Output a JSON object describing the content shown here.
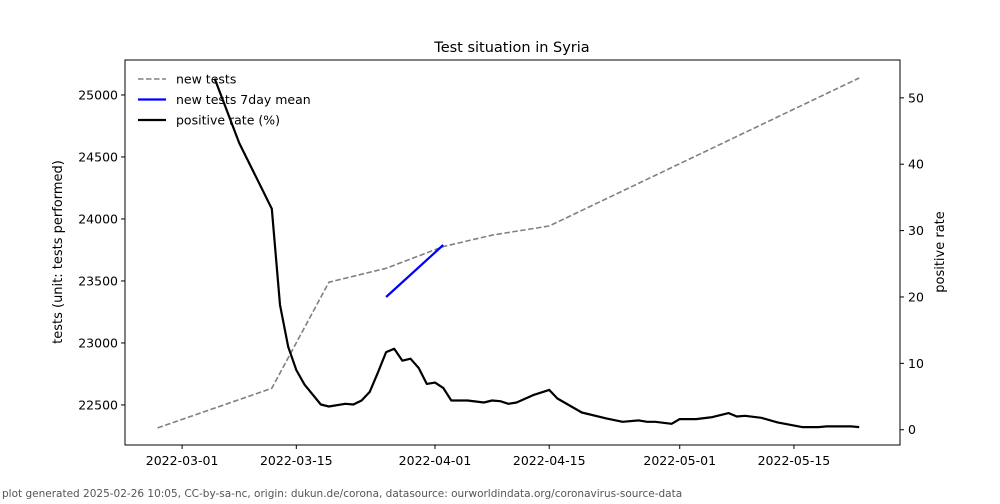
{
  "chart_data": {
    "type": "line",
    "title": "Test situation in Syria",
    "xlabel": "",
    "ylabel": "tests (unit: tests performed)",
    "y2label": "positive rate",
    "xlim": [
      "2022-02-22",
      "2022-05-28"
    ],
    "ylim": [
      22177,
      25282
    ],
    "y2lim": [
      -2.3,
      55.7
    ],
    "x_ticks": [
      "2022-03-01",
      "2022-03-15",
      "2022-04-01",
      "2022-04-15",
      "2022-05-01",
      "2022-05-15"
    ],
    "y_ticks": [
      22500,
      23000,
      23500,
      24000,
      24500,
      25000
    ],
    "y2_ticks": [
      0,
      10,
      20,
      30,
      40,
      50
    ],
    "legend_position": "top-left",
    "series": [
      {
        "name": "new tests",
        "axis": "left",
        "color": "#808080",
        "style": "dashed",
        "points": [
          [
            "2022-02-26",
            22315
          ],
          [
            "2022-03-12",
            22634
          ],
          [
            "2022-03-19",
            23490
          ],
          [
            "2022-03-26",
            23602
          ],
          [
            "2022-04-02",
            23777
          ],
          [
            "2022-04-08",
            23870
          ],
          [
            "2022-04-15",
            23943
          ],
          [
            "2022-05-23",
            25137
          ]
        ]
      },
      {
        "name": "new tests 7day mean",
        "axis": "left",
        "color": "#0000ff",
        "style": "solid",
        "points": [
          [
            "2022-03-26",
            23371
          ],
          [
            "2022-04-02",
            23790
          ]
        ]
      },
      {
        "name": "positive rate (%)",
        "axis": "right",
        "color": "#000000",
        "style": "solid",
        "points": [
          [
            "2022-03-05",
            52.9
          ],
          [
            "2022-03-08",
            43.2
          ],
          [
            "2022-03-12",
            33.3
          ],
          [
            "2022-03-13",
            18.8
          ],
          [
            "2022-03-14",
            12.5
          ],
          [
            "2022-03-15",
            9.0
          ],
          [
            "2022-03-16",
            6.8
          ],
          [
            "2022-03-18",
            3.8
          ],
          [
            "2022-03-19",
            3.5
          ],
          [
            "2022-03-21",
            3.9
          ],
          [
            "2022-03-22",
            3.8
          ],
          [
            "2022-03-23",
            4.4
          ],
          [
            "2022-03-24",
            5.7
          ],
          [
            "2022-03-25",
            8.6
          ],
          [
            "2022-03-26",
            11.7
          ],
          [
            "2022-03-27",
            12.2
          ],
          [
            "2022-03-28",
            10.4
          ],
          [
            "2022-03-29",
            10.7
          ],
          [
            "2022-03-30",
            9.3
          ],
          [
            "2022-03-31",
            6.9
          ],
          [
            "2022-04-01",
            7.1
          ],
          [
            "2022-04-02",
            6.3
          ],
          [
            "2022-04-03",
            4.4
          ],
          [
            "2022-04-05",
            4.4
          ],
          [
            "2022-04-07",
            4.1
          ],
          [
            "2022-04-08",
            4.4
          ],
          [
            "2022-04-09",
            4.3
          ],
          [
            "2022-04-10",
            3.9
          ],
          [
            "2022-04-11",
            4.1
          ],
          [
            "2022-04-13",
            5.2
          ],
          [
            "2022-04-15",
            6.0
          ],
          [
            "2022-04-16",
            4.7
          ],
          [
            "2022-04-19",
            2.6
          ],
          [
            "2022-04-22",
            1.7
          ],
          [
            "2022-04-24",
            1.2
          ],
          [
            "2022-04-26",
            1.4
          ],
          [
            "2022-04-27",
            1.2
          ],
          [
            "2022-04-28",
            1.2
          ],
          [
            "2022-04-30",
            0.9
          ],
          [
            "2022-05-01",
            1.6
          ],
          [
            "2022-05-03",
            1.6
          ],
          [
            "2022-05-05",
            1.9
          ],
          [
            "2022-05-07",
            2.5
          ],
          [
            "2022-05-08",
            2.0
          ],
          [
            "2022-05-09",
            2.1
          ],
          [
            "2022-05-11",
            1.8
          ],
          [
            "2022-05-13",
            1.1
          ],
          [
            "2022-05-16",
            0.4
          ],
          [
            "2022-05-18",
            0.4
          ],
          [
            "2022-05-19",
            0.5
          ],
          [
            "2022-05-22",
            0.5
          ],
          [
            "2022-05-23",
            0.4
          ]
        ]
      }
    ]
  },
  "footer": "plot generated 2025-02-26 10:05, CC-by-sa-nc, origin: dukun.de/corona, datasource: ourworldindata.org/coronavirus-source-data"
}
